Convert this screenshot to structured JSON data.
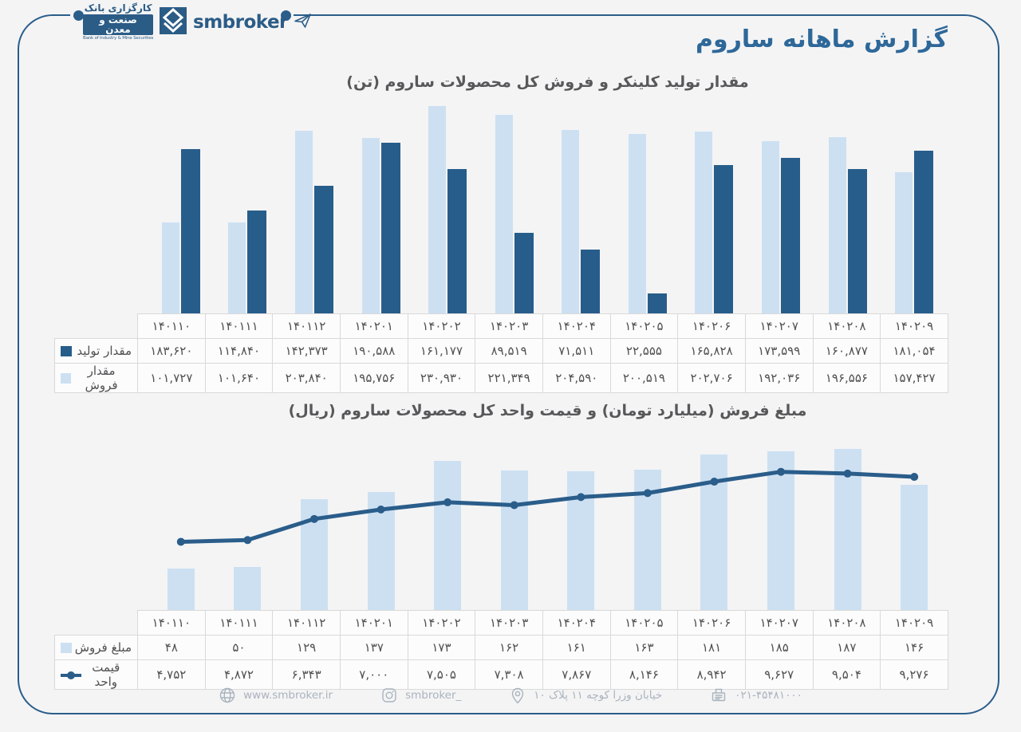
{
  "brand": {
    "line1": "کارگزاری بانک",
    "line2": "صنعت و معدن",
    "line3": "Bank of Industry & Mine Securities",
    "wordmark": "smbroker"
  },
  "page_title": "گزارش ماهانه ساروم",
  "colors": {
    "frame_line": "#2a5d8a",
    "bar_dark": "#275d8a",
    "bar_light": "#cde0f2",
    "title_blue": "#2e6899",
    "chart_title_gray": "#58585a",
    "footer_gray": "#a9b3bd"
  },
  "number_format": {
    "digits": "persian",
    "thousands_separator": ","
  },
  "chart_data": [
    {
      "type": "bar",
      "title": "مقدار تولید کلینکر و فروش کل محصولات ساروم (تن)",
      "categories": [
        "140110",
        "140111",
        "140112",
        "140201",
        "140202",
        "140203",
        "140204",
        "140205",
        "140206",
        "140207",
        "140208",
        "140209"
      ],
      "series": [
        {
          "name": "مقدار تولید",
          "type": "bar",
          "color": "#275d8a",
          "values": [
            183620,
            114840,
            142373,
            190588,
            161177,
            89519,
            71511,
            22555,
            165828,
            173599,
            160877,
            181054
          ]
        },
        {
          "name": "مقدار فروش",
          "type": "bar",
          "color": "#cde0f2",
          "values": [
            101727,
            101640,
            203840,
            195756,
            230930,
            221349,
            204590,
            200519,
            202706,
            192036,
            196556,
            157427
          ]
        }
      ],
      "ylim": [
        0,
        233000
      ],
      "grid": false,
      "legend_position": "table-left"
    },
    {
      "type": "bar+line",
      "title": "مبلغ فروش (میلیارد تومان) و قیمت واحد کل محصولات ساروم (ریال)",
      "categories": [
        "140110",
        "140111",
        "140112",
        "140201",
        "140202",
        "140203",
        "140204",
        "140205",
        "140206",
        "140207",
        "140208",
        "140209"
      ],
      "series": [
        {
          "name": "مبلغ فروش",
          "type": "bar",
          "color": "#cde0f2",
          "ylim": [
            0,
            192
          ],
          "values": [
            48,
            50,
            129,
            137,
            173,
            162,
            161,
            163,
            181,
            185,
            187,
            146
          ]
        },
        {
          "name": "قیمت واحد",
          "type": "line",
          "color": "#2a5d8a",
          "ylim": [
            0,
            11500
          ],
          "values": [
            4752,
            4872,
            6343,
            7000,
            7505,
            7308,
            7867,
            8146,
            8942,
            9627,
            9504,
            9276
          ]
        }
      ],
      "grid": false,
      "legend_position": "table-left"
    }
  ],
  "footer": {
    "website": "www.smbroker.ir",
    "instagram": "smbroker_",
    "address": "خیابان وزرا کوچه ۱۱ پلاک ۱۰",
    "phone": "۰۲۱-۴۵۴۸۱۰۰۰"
  }
}
